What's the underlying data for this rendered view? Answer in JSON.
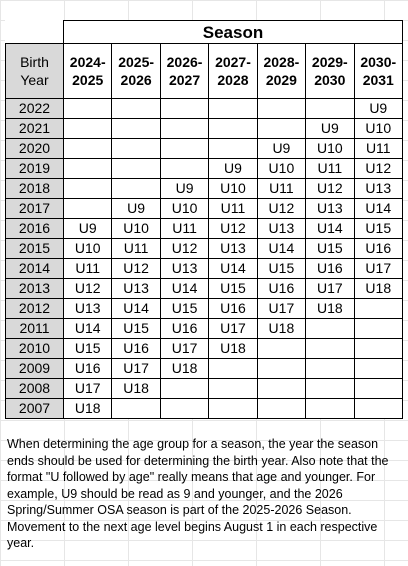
{
  "header": {
    "title": "Season"
  },
  "table": {
    "columns": [
      "Birth Year",
      "2024-2025",
      "2025-2026",
      "2026-2027",
      "2027-2028",
      "2028-2029",
      "2029-2030",
      "2030-2031"
    ],
    "rows": [
      [
        "2022",
        null,
        null,
        null,
        null,
        null,
        null,
        "U9"
      ],
      [
        "2021",
        null,
        null,
        null,
        null,
        null,
        "U9",
        "U10"
      ],
      [
        "2020",
        null,
        null,
        null,
        null,
        "U9",
        "U10",
        "U11"
      ],
      [
        "2019",
        null,
        null,
        null,
        "U9",
        "U10",
        "U11",
        "U12"
      ],
      [
        "2018",
        null,
        null,
        "U9",
        "U10",
        "U11",
        "U12",
        "U13"
      ],
      [
        "2017",
        null,
        "U9",
        "U10",
        "U11",
        "U12",
        "U13",
        "U14"
      ],
      [
        "2016",
        "U9",
        "U10",
        "U11",
        "U12",
        "U13",
        "U14",
        "U15"
      ],
      [
        "2015",
        "U10",
        "U11",
        "U12",
        "U13",
        "U14",
        "U15",
        "U16"
      ],
      [
        "2014",
        "U11",
        "U12",
        "U13",
        "U14",
        "U15",
        "U16",
        "U17"
      ],
      [
        "2013",
        "U12",
        "U13",
        "U14",
        "U15",
        "U16",
        "U17",
        "U18"
      ],
      [
        "2012",
        "U13",
        "U14",
        "U15",
        "U16",
        "U17",
        "U18",
        null
      ],
      [
        "2011",
        "U14",
        "U15",
        "U16",
        "U17",
        "U18",
        null,
        null
      ],
      [
        "2010",
        "U15",
        "U16",
        "U17",
        "U18",
        null,
        null,
        null
      ],
      [
        "2009",
        "U16",
        "U17",
        "U18",
        null,
        null,
        null,
        null
      ],
      [
        "2008",
        "U17",
        "U18",
        null,
        null,
        null,
        null,
        null
      ],
      [
        "2007",
        "U18",
        null,
        null,
        null,
        null,
        null,
        null
      ]
    ]
  },
  "note": "When determining the age group for a season, the year the season ends should be used for determining the birth year. Also note that the format \"U followed by age\" really means that age and younger. For example, U9 should be read as 9 and younger, and the 2026 Spring/Summer OSA season is part of the 2025-2026 Season. Movement to the next age level begins August 1 in each respective year."
}
